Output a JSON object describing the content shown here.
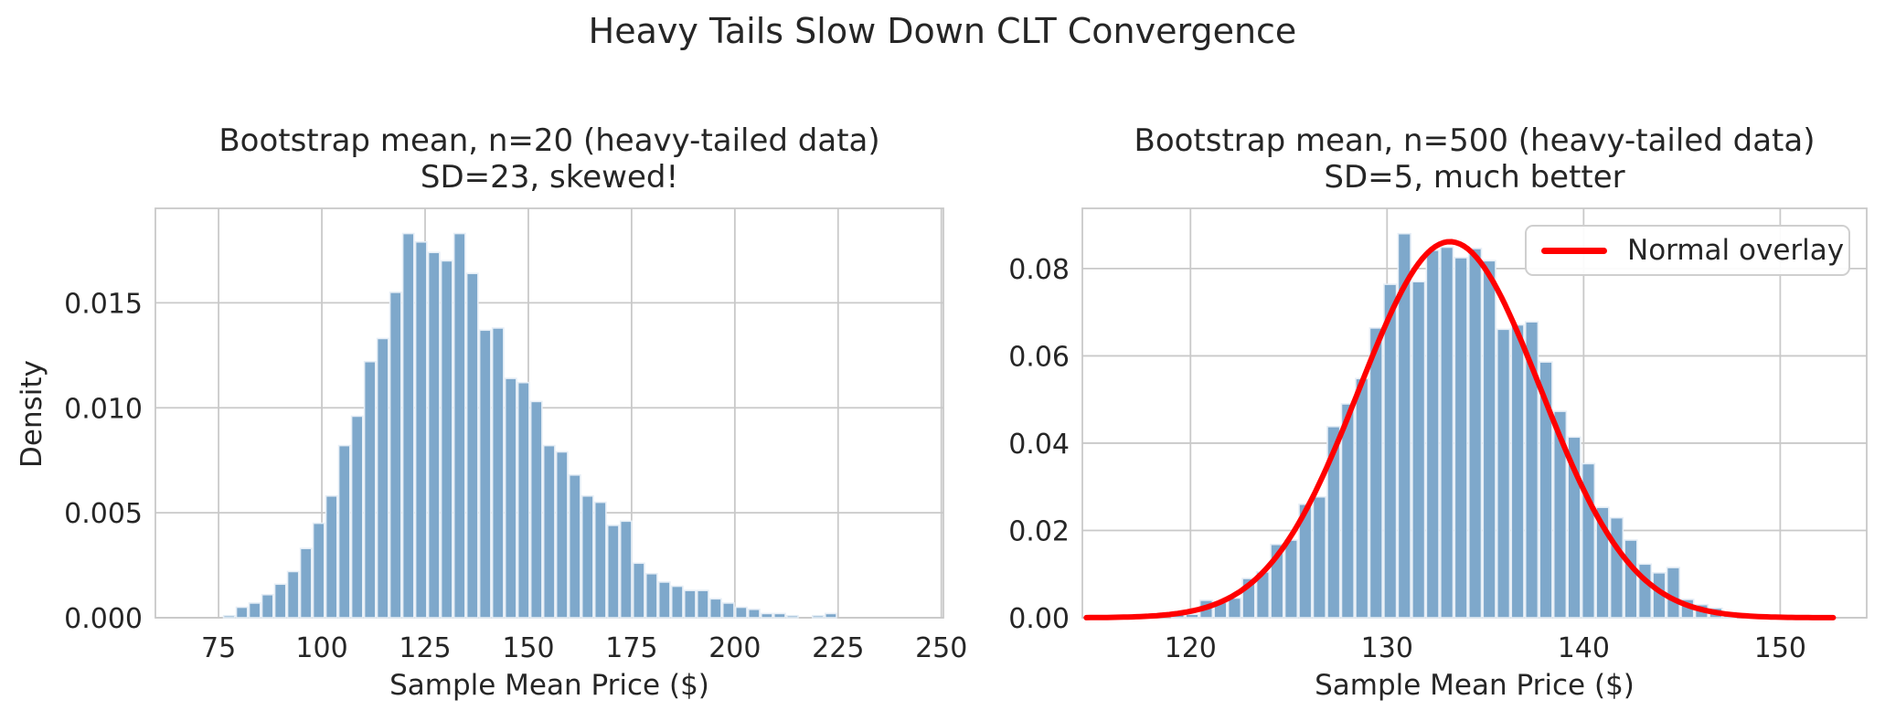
{
  "figure": {
    "suptitle": "Heavy Tails Slow Down CLT Convergence",
    "text_color": "#262626",
    "background": "#ffffff",
    "bar_fill": "#7ea8cb",
    "bar_edge": "#e6eef6",
    "grid_color": "#c9c9c9",
    "spine_color": "#c9c9c9",
    "overlay_color": "#ff0000"
  },
  "chart_data": [
    {
      "type": "bar",
      "title_line1": "Bootstrap mean, n=20 (heavy-tailed data)",
      "title_line2": "SD=23, skewed!",
      "xlabel": "Sample Mean Price ($)",
      "ylabel": "Density",
      "legend": null,
      "grid": true,
      "xlim": [
        59.7,
        250.5
      ],
      "ylim": [
        0,
        0.0195
      ],
      "xticks": [
        75,
        100,
        125,
        150,
        175,
        200,
        225,
        250
      ],
      "xtick_labels": [
        "75",
        "100",
        "125",
        "150",
        "175",
        "200",
        "225",
        "250"
      ],
      "yticks": [
        0.0,
        0.005,
        0.01,
        0.015
      ],
      "ytick_labels": [
        "0.000",
        "0.005",
        "0.010",
        "0.015"
      ],
      "histogram": {
        "bin_start": 76.0,
        "bin_width": 3.1,
        "densities": [
          0.0001,
          0.0005,
          0.0007,
          0.0011,
          0.0016,
          0.0022,
          0.0033,
          0.0045,
          0.0058,
          0.0082,
          0.0096,
          0.0122,
          0.0133,
          0.0155,
          0.0183,
          0.0179,
          0.0174,
          0.017,
          0.0183,
          0.0164,
          0.0137,
          0.0138,
          0.0114,
          0.0112,
          0.0103,
          0.0082,
          0.0079,
          0.0068,
          0.0058,
          0.0055,
          0.0044,
          0.0046,
          0.0026,
          0.0021,
          0.0017,
          0.0015,
          0.0013,
          0.0013,
          0.0009,
          0.0007,
          0.0005,
          0.0004,
          0.0002,
          0.0002,
          0.0001,
          0.0,
          0.0001,
          0.0002
        ]
      },
      "overlay": null
    },
    {
      "type": "bar+line",
      "title_line1": "Bootstrap mean, n=500 (heavy-tailed data)",
      "title_line2": "SD=5, much better",
      "xlabel": "Sample Mean Price ($)",
      "ylabel": "",
      "legend": {
        "label": "Normal overlay",
        "position": "upper right"
      },
      "grid": true,
      "xlim": [
        114.5,
        154.4
      ],
      "ylim": [
        0,
        0.0938
      ],
      "xticks": [
        120,
        130,
        140,
        150
      ],
      "xtick_labels": [
        "120",
        "130",
        "140",
        "150"
      ],
      "yticks": [
        0.0,
        0.02,
        0.04,
        0.06,
        0.08
      ],
      "ytick_labels": [
        "0.00",
        "0.02",
        "0.04",
        "0.06",
        "0.08"
      ],
      "histogram": {
        "bin_start": 119.0,
        "bin_width": 0.72,
        "densities": [
          0.001,
          0.0008,
          0.004,
          0.0035,
          0.0045,
          0.009,
          0.0105,
          0.0168,
          0.0178,
          0.026,
          0.0277,
          0.0438,
          0.049,
          0.0548,
          0.0664,
          0.0764,
          0.088,
          0.077,
          0.0842,
          0.0849,
          0.0825,
          0.0846,
          0.0818,
          0.0661,
          0.0671,
          0.0678,
          0.0586,
          0.0473,
          0.0414,
          0.0353,
          0.0253,
          0.0229,
          0.0178,
          0.0123,
          0.0103,
          0.0115,
          0.0042,
          0.003,
          0.0022,
          0.0012
        ]
      },
      "overlay": {
        "shape": "normal_pdf",
        "mean": 133.2,
        "sd": 4.63,
        "x_start": 114.7,
        "x_end": 152.7
      }
    }
  ]
}
